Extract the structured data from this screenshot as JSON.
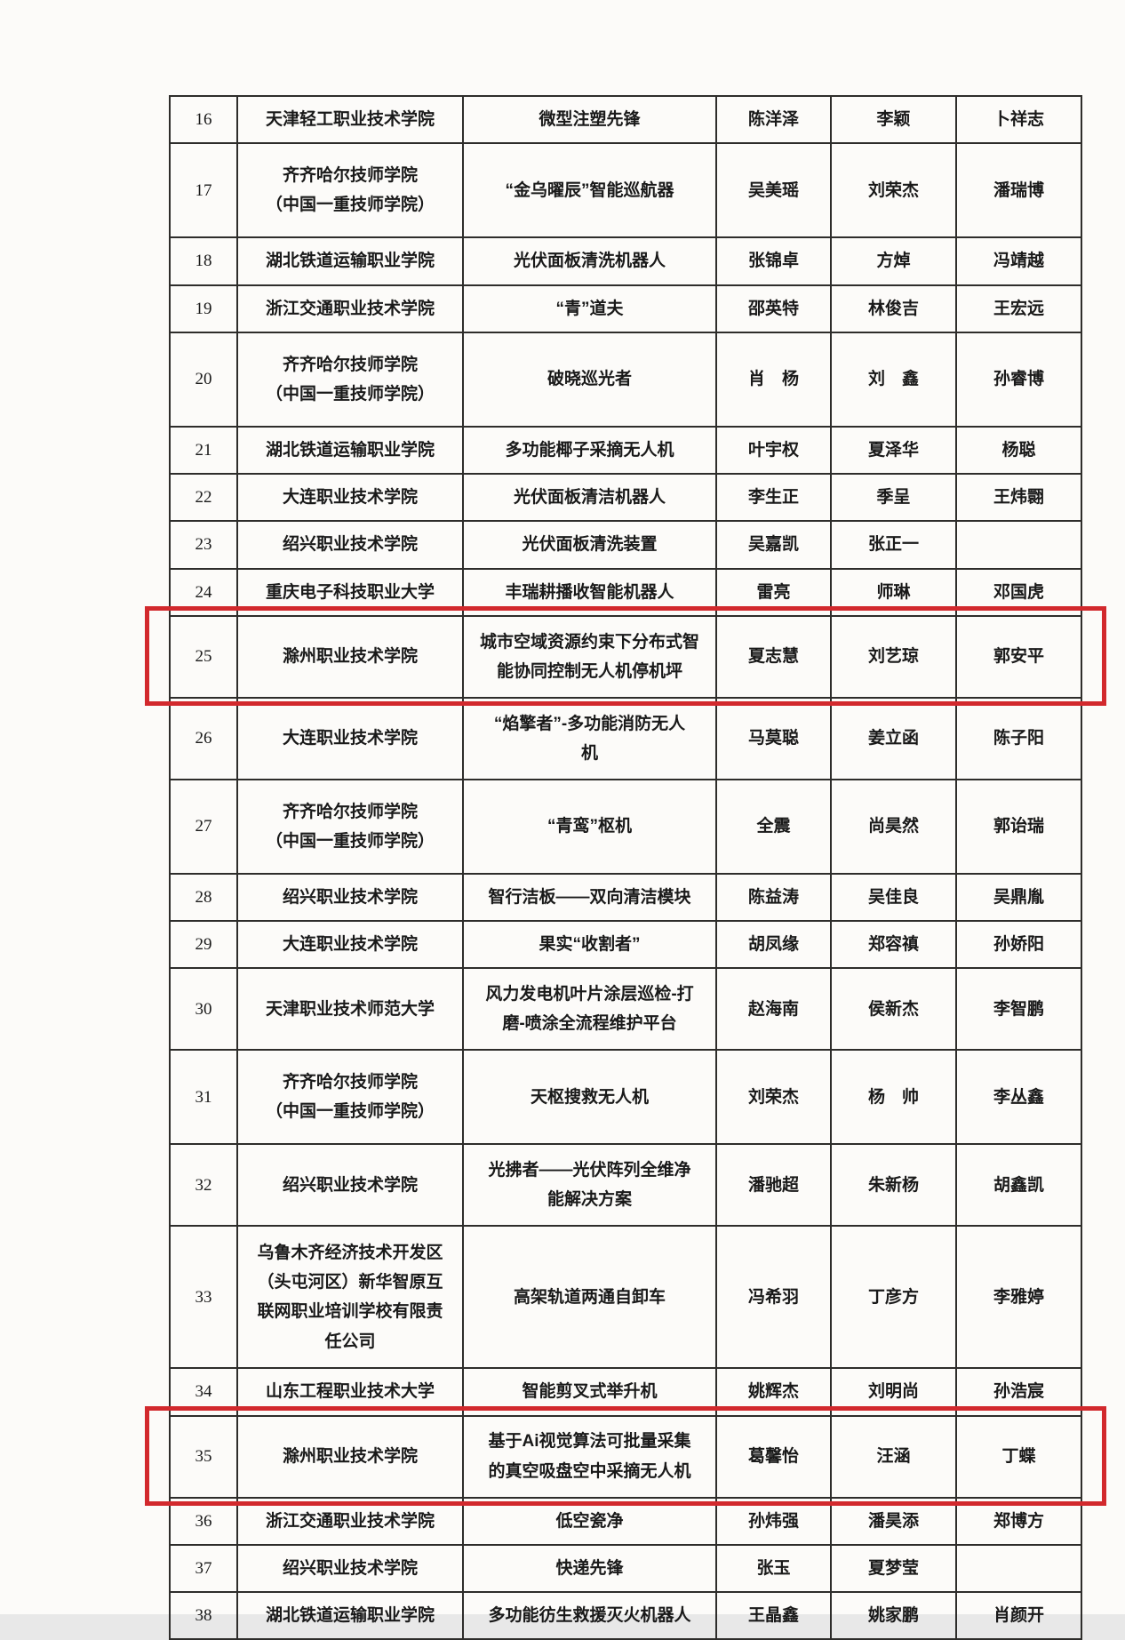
{
  "page": {
    "kind": "scanned-table-page",
    "paper_color": "#fcfbf9",
    "highlight_color": "#d2292d",
    "visible_row_range": "16-38"
  },
  "table": {
    "rows": [
      {
        "no": "16",
        "school": "天津轻工职业技术学院",
        "project": "微型注塑先锋",
        "member1": "陈洋泽",
        "member2": "李颖",
        "member3": "卜祥志",
        "highlighted": false,
        "size": "s"
      },
      {
        "no": "17",
        "school": "齐齐哈尔技师学院\n（中国一重技师学院）",
        "project": "“金乌曜辰”智能巡航器",
        "member1": "吴美瑶",
        "member2": "刘荣杰",
        "member3": "潘瑞博",
        "highlighted": false,
        "size": "school2"
      },
      {
        "no": "18",
        "school": "湖北铁道运输职业学院",
        "project": "光伏面板清洗机器人",
        "member1": "张锦卓",
        "member2": "方焯",
        "member3": "冯靖越",
        "highlighted": false,
        "size": "s"
      },
      {
        "no": "19",
        "school": "浙江交通职业技术学院",
        "project": "“青”道夫",
        "member1": "邵英特",
        "member2": "林俊吉",
        "member3": "王宏远",
        "highlighted": false,
        "size": "s"
      },
      {
        "no": "20",
        "school": "齐齐哈尔技师学院\n（中国一重技师学院）",
        "project": "破晓巡光者",
        "member1": "肖　杨",
        "member2": "刘　鑫",
        "member3": "孙睿博",
        "highlighted": false,
        "size": "school2"
      },
      {
        "no": "21",
        "school": "湖北铁道运输职业学院",
        "project": "多功能椰子采摘无人机",
        "member1": "叶宇权",
        "member2": "夏泽华",
        "member3": "杨聪",
        "highlighted": false,
        "size": "s"
      },
      {
        "no": "22",
        "school": "大连职业技术学院",
        "project": "光伏面板清洁机器人",
        "member1": "李生正",
        "member2": "季呈",
        "member3": "王炜翾",
        "highlighted": false,
        "size": "s"
      },
      {
        "no": "23",
        "school": "绍兴职业技术学院",
        "project": "光伏面板清洗装置",
        "member1": "吴嘉凯",
        "member2": "张正一",
        "member3": "",
        "highlighted": false,
        "size": "s"
      },
      {
        "no": "24",
        "school": "重庆电子科技职业大学",
        "project": "丰瑞耕播收智能机器人",
        "member1": "雷亮",
        "member2": "师琳",
        "member3": "邓国虎",
        "highlighted": false,
        "size": "s"
      },
      {
        "no": "25",
        "school": "滁州职业技术学院",
        "project": "城市空域资源约束下分布式智\n能协同控制无人机停机坪",
        "member1": "夏志慧",
        "member2": "刘艺琼",
        "member3": "郭安平",
        "highlighted": true,
        "size": "proj2"
      },
      {
        "no": "26",
        "school": "大连职业技术学院",
        "project": "“焰擎者”-多功能消防无人\n机",
        "member1": "马莫聪",
        "member2": "姜立函",
        "member3": "陈子阳",
        "highlighted": false,
        "size": "proj2"
      },
      {
        "no": "27",
        "school": "齐齐哈尔技师学院\n（中国一重技师学院）",
        "project": "“青鸾”枢机",
        "member1": "全震",
        "member2": "尚昊然",
        "member3": "郭诒瑞",
        "highlighted": false,
        "size": "school2"
      },
      {
        "no": "28",
        "school": "绍兴职业技术学院",
        "project": "智行洁板——双向清洁模块",
        "member1": "陈益涛",
        "member2": "吴佳良",
        "member3": "吴鼎胤",
        "highlighted": false,
        "size": "s"
      },
      {
        "no": "29",
        "school": "大连职业技术学院",
        "project": "果实“收割者”",
        "member1": "胡凤缘",
        "member2": "郑容禛",
        "member3": "孙娇阳",
        "highlighted": false,
        "size": "s"
      },
      {
        "no": "30",
        "school": "天津职业技术师范大学",
        "project": "风力发电机叶片涂层巡检-打\n磨-喷涂全流程维护平台",
        "member1": "赵海南",
        "member2": "侯新杰",
        "member3": "李智鹏",
        "highlighted": false,
        "size": "proj2"
      },
      {
        "no": "31",
        "school": "齐齐哈尔技师学院\n（中国一重技师学院）",
        "project": "天枢搜救无人机",
        "member1": "刘荣杰",
        "member2": "杨　帅",
        "member3": "李丛鑫",
        "highlighted": false,
        "size": "school2"
      },
      {
        "no": "32",
        "school": "绍兴职业技术学院",
        "project": "光拂者——光伏阵列全维净\n能解决方案",
        "member1": "潘驰超",
        "member2": "朱新杨",
        "member3": "胡鑫凯",
        "highlighted": false,
        "size": "proj2"
      },
      {
        "no": "33",
        "school": "乌鲁木齐经济技术开发区\n（头屯河区）新华智原互\n联网职业培训学校有限责\n任公司",
        "project": "高架轨道两通自卸车",
        "member1": "冯希羽",
        "member2": "丁彦方",
        "member3": "李雅婷",
        "highlighted": false,
        "size": "school4"
      },
      {
        "no": "34",
        "school": "山东工程职业技术大学",
        "project": "智能剪叉式举升机",
        "member1": "姚辉杰",
        "member2": "刘明尚",
        "member3": "孙浩宸",
        "highlighted": false,
        "size": "s"
      },
      {
        "no": "35",
        "school": "滁州职业技术学院",
        "project": "基于Ai视觉算法可批量采集\n的真空吸盘空中采摘无人机",
        "member1": "葛馨怡",
        "member2": "汪涵",
        "member3": "丁蝶",
        "highlighted": true,
        "size": "proj2"
      },
      {
        "no": "36",
        "school": "浙江交通职业技术学院",
        "project": "低空瓷净",
        "member1": "孙炜强",
        "member2": "潘昊添",
        "member3": "郑博方",
        "highlighted": false,
        "size": "s"
      },
      {
        "no": "37",
        "school": "绍兴职业技术学院",
        "project": "快递先锋",
        "member1": "张玉",
        "member2": "夏梦莹",
        "member3": "",
        "highlighted": false,
        "size": "s"
      },
      {
        "no": "38",
        "school": "湖北铁道运输职业学院",
        "project": "多功能彷生救援灭火机器人",
        "member1": "王晶鑫",
        "member2": "姚家鹏",
        "member3": "肖颜开",
        "highlighted": false,
        "size": "s"
      }
    ]
  }
}
